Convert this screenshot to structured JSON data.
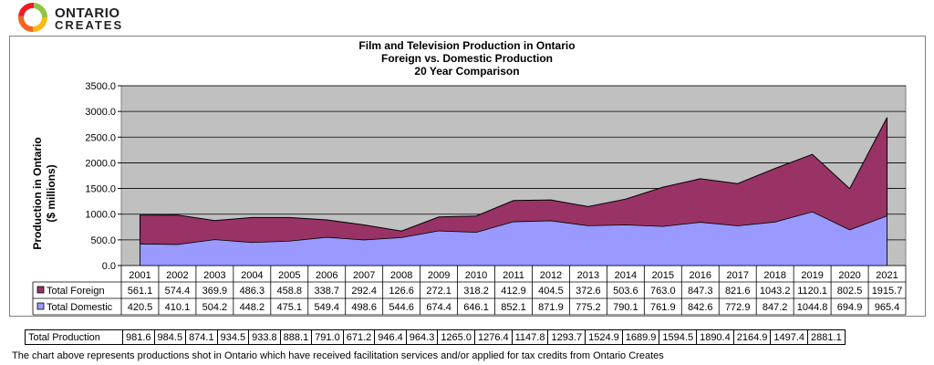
{
  "logo": {
    "line1": "ONTARIO",
    "line2": "CREATES",
    "ring_colors": [
      "#f26522",
      "#fdb913",
      "#ed1c24",
      "#8dc63f"
    ]
  },
  "chart_data": {
    "type": "area",
    "stacked": true,
    "title_lines": [
      "Film and Television Production in Ontario",
      "Foreign vs. Domestic Production",
      "20 Year Comparison"
    ],
    "ylabel_lines": [
      "Production in Ontario",
      "($ millions)"
    ],
    "ylim": [
      0,
      3500
    ],
    "yticks": [
      "0.0",
      "500.0",
      "1000.0",
      "1500.0",
      "2000.0",
      "2500.0",
      "3000.0",
      "3500.0"
    ],
    "grid": true,
    "categories": [
      "2001",
      "2002",
      "2003",
      "2004",
      "2005",
      "2006",
      "2007",
      "2008",
      "2009",
      "2010",
      "2011",
      "2012",
      "2013",
      "2014",
      "2015",
      "2016",
      "2017",
      "2018",
      "2019",
      "2020",
      "2021"
    ],
    "series": [
      {
        "name": "Total Domestic",
        "color": "#9999ff",
        "values": [
          420.5,
          410.1,
          504.2,
          448.2,
          475.1,
          549.4,
          498.6,
          544.6,
          674.4,
          646.1,
          852.1,
          871.9,
          775.2,
          790.1,
          761.9,
          842.6,
          772.9,
          847.2,
          1044.8,
          694.9,
          965.4
        ],
        "labels": [
          "420.5",
          "410.1",
          "504.2",
          "448.2",
          "475.1",
          "549.4",
          "498.6",
          "544.6",
          "674.4",
          "646.1",
          "852.1",
          "871.9",
          "775.2",
          "790.1",
          "761.9",
          "842.6",
          "772.9",
          "847.2",
          "1044.8",
          "694.9",
          "965.4"
        ]
      },
      {
        "name": "Total Foreign",
        "color": "#993366",
        "values": [
          561.1,
          574.4,
          369.9,
          486.3,
          458.8,
          338.7,
          292.4,
          126.6,
          272.1,
          318.2,
          412.9,
          404.5,
          372.6,
          503.6,
          763.0,
          847.3,
          821.6,
          1043.2,
          1120.1,
          802.5,
          1915.7
        ],
        "labels": [
          "561.1",
          "574.4",
          "369.9",
          "486.3",
          "458.8",
          "338.7",
          "292.4",
          "126.6",
          "272.1",
          "318.2",
          "412.9",
          "404.5",
          "372.6",
          "503.6",
          "763.0",
          "847.3",
          "821.6",
          "1043.2",
          "1120.1",
          "802.5",
          "1915.7"
        ]
      }
    ],
    "table_row_order": [
      "Total Foreign",
      "Total Domestic"
    ],
    "plot_bg": "#c0c0c0"
  },
  "totals": {
    "label": "Total Production",
    "values": [
      "981.6",
      "984.5",
      "874.1",
      "934.5",
      "933.8",
      "888.1",
      "791.0",
      "671.2",
      "946.4",
      "964.3",
      "1265.0",
      "1276.4",
      "1147.8",
      "1293.7",
      "1524.9",
      "1689.9",
      "1594.5",
      "1890.4",
      "2164.9",
      "1497.4",
      "2881.1"
    ]
  },
  "footnote": "The chart above represents productions shot in Ontario which have received facilitation services and/or applied for tax credits from Ontario Creates"
}
